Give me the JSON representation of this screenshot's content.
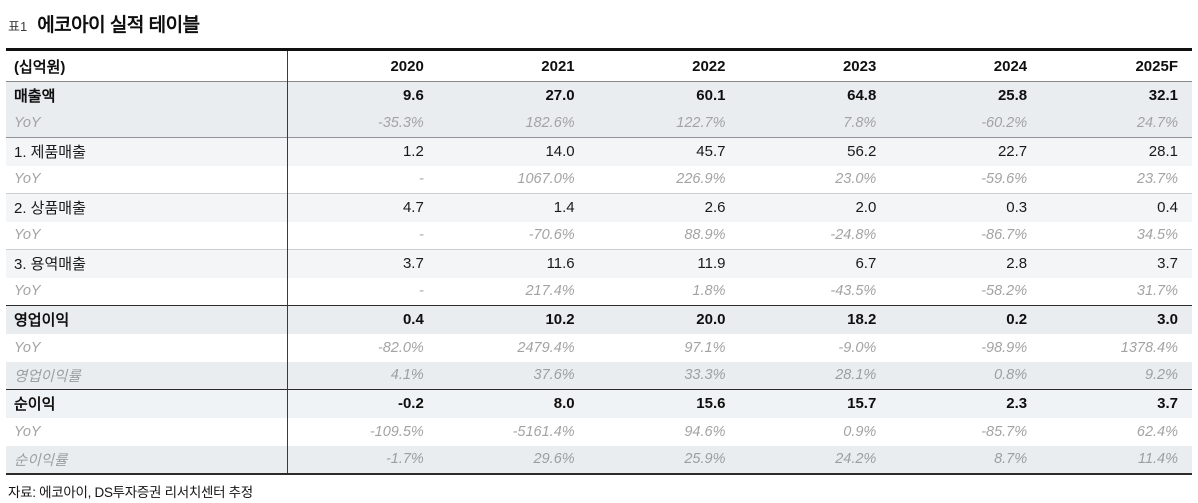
{
  "title": {
    "tag": "표1",
    "text": "에코아이 실적 테이블"
  },
  "table": {
    "unit_label": "(십억원)",
    "years": [
      "2020",
      "2021",
      "2022",
      "2023",
      "2024",
      "2025F"
    ],
    "rows": [
      {
        "label": "매출액",
        "type": "section",
        "values": [
          "9.6",
          "27.0",
          "60.1",
          "64.8",
          "25.8",
          "32.1"
        ]
      },
      {
        "label": "YoY",
        "type": "yoy-shaded",
        "values": [
          "-35.3%",
          "182.6%",
          "122.7%",
          "7.8%",
          "-60.2%",
          "24.7%"
        ]
      },
      {
        "label": "1. 제품매출",
        "type": "sub",
        "values": [
          "1.2",
          "14.0",
          "45.7",
          "56.2",
          "22.7",
          "28.1"
        ]
      },
      {
        "label": "YoY",
        "type": "yoy",
        "values": [
          "-",
          "1067.0%",
          "226.9%",
          "23.0%",
          "-59.6%",
          "23.7%"
        ]
      },
      {
        "label": "2. 상품매출",
        "type": "sub",
        "values": [
          "4.7",
          "1.4",
          "2.6",
          "2.0",
          "0.3",
          "0.4"
        ]
      },
      {
        "label": "YoY",
        "type": "yoy",
        "values": [
          "-",
          "-70.6%",
          "88.9%",
          "-24.8%",
          "-86.7%",
          "34.5%"
        ]
      },
      {
        "label": "3. 용역매출",
        "type": "sub",
        "values": [
          "3.7",
          "11.6",
          "11.9",
          "6.7",
          "2.8",
          "3.7"
        ]
      },
      {
        "label": "YoY",
        "type": "yoy",
        "values": [
          "-",
          "217.4%",
          "1.8%",
          "-43.5%",
          "-58.2%",
          "31.7%"
        ]
      },
      {
        "label": "영업이익",
        "type": "section",
        "values": [
          "0.4",
          "10.2",
          "20.0",
          "18.2",
          "0.2",
          "3.0"
        ]
      },
      {
        "label": "YoY",
        "type": "yoy",
        "values": [
          "-82.0%",
          "2479.4%",
          "97.1%",
          "-9.0%",
          "-98.9%",
          "1378.4%"
        ]
      },
      {
        "label": "영업이익률",
        "type": "ratio",
        "values": [
          "4.1%",
          "37.6%",
          "33.3%",
          "28.1%",
          "0.8%",
          "9.2%"
        ]
      },
      {
        "label": "순이익",
        "type": "section",
        "values": [
          "-0.2",
          "8.0",
          "15.6",
          "15.7",
          "2.3",
          "3.7"
        ]
      },
      {
        "label": "YoY",
        "type": "yoy",
        "values": [
          "-109.5%",
          "-5161.4%",
          "94.6%",
          "0.9%",
          "-85.7%",
          "62.4%"
        ]
      },
      {
        "label": "순이익률",
        "type": "ratio",
        "values": [
          "-1.7%",
          "29.6%",
          "25.9%",
          "24.2%",
          "8.7%",
          "11.4%"
        ]
      }
    ]
  },
  "footer": {
    "source": "자료: 에코아이, DS투자증권 리서치센터 추정"
  },
  "colors": {
    "section_band": "#e9edf0",
    "sub_band": "#f4f5f6",
    "net_income_band": "#f0f3f5",
    "muted_text": "#a3a3a3",
    "top_border": "#101010",
    "dark_rule": "#2b2b2b"
  }
}
